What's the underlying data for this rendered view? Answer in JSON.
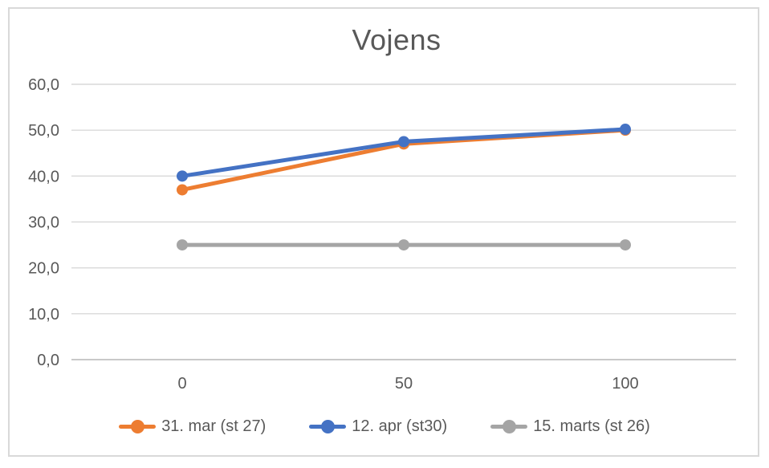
{
  "chart_data": {
    "type": "line",
    "title": "Vojens",
    "categories": [
      "0",
      "50",
      "100"
    ],
    "series": [
      {
        "name": "31. mar (st 27)",
        "color": "#ED7D31",
        "values": [
          37,
          47,
          50
        ]
      },
      {
        "name": "12. apr (st30)",
        "color": "#4472C4",
        "values": [
          40,
          47.5,
          50.2
        ]
      },
      {
        "name": "15. marts (st 26)",
        "color": "#A5A5A5",
        "values": [
          25,
          25,
          25
        ]
      }
    ],
    "xlabel": "",
    "ylabel": "",
    "ylim": [
      0,
      60
    ],
    "ytick_labels": [
      "0,0",
      "10,0",
      "20,0",
      "30,0",
      "40,0",
      "50,0",
      "60,0"
    ],
    "xtick_labels": [
      "0",
      "50",
      "100"
    ],
    "grid": true,
    "legend_position": "bottom",
    "marker": "circle"
  },
  "style": {
    "title_color": "#595959",
    "tick_label_color": "#595959",
    "legend_text_color": "#595959",
    "gridline_color": "#D9D9D9",
    "axis_line_color": "#C9C9C9",
    "frame_border_color": "#D9D9D9",
    "background": "#FFFFFF"
  }
}
